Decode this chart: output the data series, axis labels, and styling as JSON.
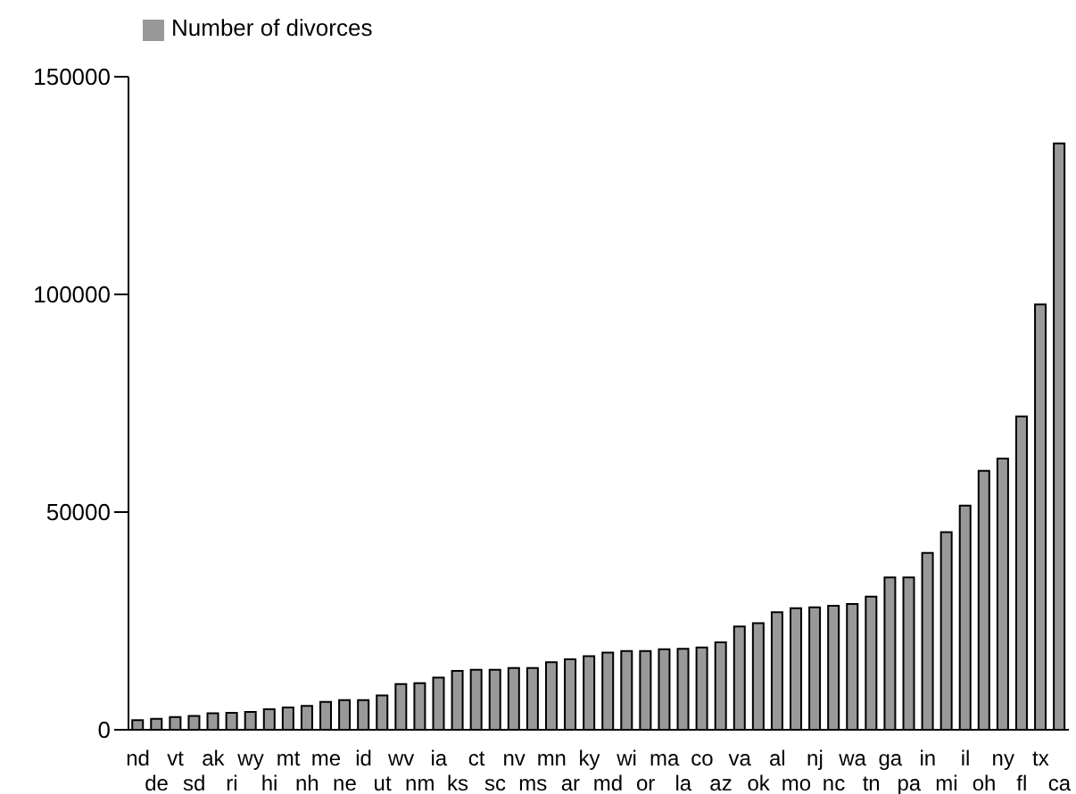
{
  "chart_data": {
    "type": "bar",
    "categories": [
      "nd",
      "de",
      "vt",
      "sd",
      "ak",
      "ri",
      "wy",
      "hi",
      "mt",
      "nh",
      "me",
      "ne",
      "id",
      "ut",
      "wv",
      "nm",
      "ia",
      "ks",
      "ct",
      "sc",
      "nv",
      "ms",
      "mn",
      "ar",
      "ky",
      "md",
      "wi",
      "or",
      "ma",
      "la",
      "co",
      "az",
      "va",
      "ok",
      "al",
      "mo",
      "nj",
      "nc",
      "wa",
      "tn",
      "ga",
      "pa",
      "in",
      "mi",
      "il",
      "oh",
      "ny",
      "fl",
      "tx",
      "ca"
    ],
    "series": [
      {
        "name": "Number of divorces",
        "color": "#999999",
        "values": [
          2200,
          2500,
          2900,
          3200,
          3800,
          3900,
          4100,
          4700,
          5100,
          5500,
          6400,
          6800,
          6800,
          7900,
          10500,
          10700,
          12000,
          13500,
          13800,
          13800,
          14200,
          14200,
          15500,
          16200,
          16900,
          17700,
          18100,
          18100,
          18500,
          18600,
          18900,
          20100,
          23700,
          24500,
          27000,
          27900,
          28100,
          28500,
          28900,
          30600,
          35000,
          35000,
          40600,
          45400,
          51500,
          59500,
          62300,
          72000,
          97700,
          134700
        ]
      }
    ],
    "ylim": [
      0,
      150000
    ],
    "yticks": [
      0,
      50000,
      100000,
      150000
    ],
    "grid": false,
    "legend": "top left"
  }
}
